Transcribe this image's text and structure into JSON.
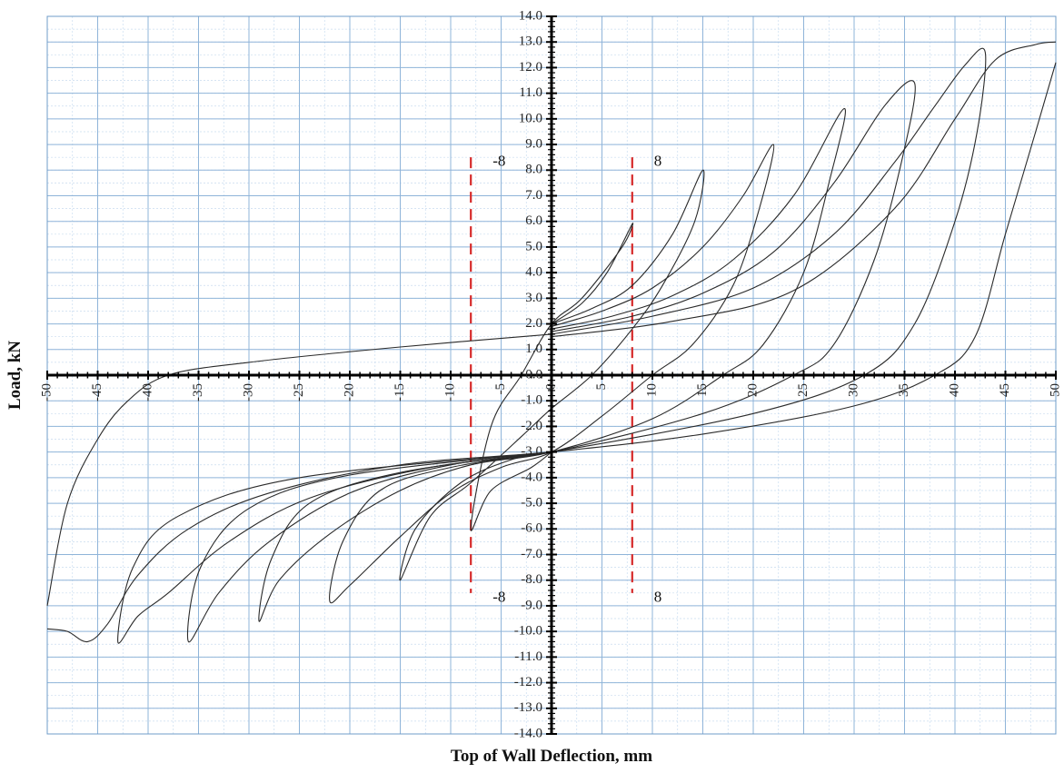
{
  "chart_data": {
    "type": "line",
    "title": "",
    "xlabel": "Top of Wall Deflection, mm",
    "ylabel": "Load, kN",
    "xlim": [
      -50,
      50
    ],
    "ylim": [
      -14,
      14
    ],
    "x_ticks": [
      -50,
      -45,
      -40,
      -35,
      -30,
      -25,
      -20,
      -15,
      -10,
      -5,
      0,
      5,
      10,
      15,
      20,
      25,
      30,
      35,
      40,
      45,
      50
    ],
    "y_ticks": [
      14,
      13,
      12,
      11,
      10,
      9,
      8,
      7,
      6,
      5,
      4,
      3,
      2,
      1,
      0,
      -1,
      -2,
      -3,
      -4,
      -5,
      -6,
      -7,
      -8,
      -9,
      -10,
      -11,
      -12,
      -13,
      -14
    ],
    "y_tick_labels": [
      "14.0",
      "13.0",
      "12.0",
      "11.0",
      "10.0",
      "9.0",
      "8.0",
      "7.0",
      "6.0",
      "5.0",
      "4.0",
      "3.0",
      "2.0",
      "1.0",
      "0.0",
      "-1.0",
      "-2.0",
      "-3.0",
      "-4.0",
      "-5.0",
      "-6.0",
      "-7.0",
      "-8.0",
      "-9.0",
      "-10.0",
      "-11.0",
      "-12.0",
      "-13.0",
      "-14.0"
    ],
    "grid": true,
    "minor_grid": true,
    "colors": {
      "curve": "#2a2a2a",
      "grid_major": "#8fb4d9",
      "grid_minor": "#c9dcef",
      "axis": "#000000",
      "marker": "#d62a2a"
    },
    "series": [
      {
        "values": [
          [
            0,
            2
          ],
          [
            3,
            2.8
          ],
          [
            5.5,
            4
          ],
          [
            8,
            5.9
          ],
          [
            7,
            5
          ],
          [
            3,
            3
          ],
          [
            0,
            2
          ],
          [
            -3,
            0
          ],
          [
            -6,
            -2
          ],
          [
            -8,
            -6
          ],
          [
            -6,
            -4.5
          ],
          [
            -2,
            -3.6
          ],
          [
            0,
            -3
          ]
        ]
      },
      {
        "values": [
          [
            0,
            2
          ],
          [
            4,
            2.6
          ],
          [
            8,
            3.5
          ],
          [
            12,
            5.5
          ],
          [
            15,
            8
          ],
          [
            14.2,
            6
          ],
          [
            11,
            3.5
          ],
          [
            8,
            1.8
          ],
          [
            4,
            0
          ],
          [
            0,
            -1.3
          ],
          [
            -3,
            -2.4
          ],
          [
            -8,
            -4.2
          ],
          [
            -12,
            -5.5
          ],
          [
            -15,
            -8
          ],
          [
            -13.5,
            -6
          ],
          [
            -9,
            -4.2
          ],
          [
            -4,
            -3.3
          ],
          [
            0,
            -3
          ]
        ]
      },
      {
        "values": [
          [
            0,
            1.9
          ],
          [
            5,
            2.5
          ],
          [
            10,
            3.4
          ],
          [
            15,
            5
          ],
          [
            19,
            7
          ],
          [
            22,
            9
          ],
          [
            20.6,
            6.5
          ],
          [
            18,
            3.5
          ],
          [
            14,
            1.2
          ],
          [
            10,
            0
          ],
          [
            5,
            -1.6
          ],
          [
            0,
            -3
          ],
          [
            -5,
            -3.6
          ],
          [
            -10,
            -4.6
          ],
          [
            -15,
            -6.3
          ],
          [
            -20,
            -8.2
          ],
          [
            -22,
            -8.8
          ],
          [
            -20.7,
            -6.5
          ],
          [
            -17,
            -4.5
          ],
          [
            -10,
            -3.6
          ],
          [
            0,
            -3
          ]
        ]
      },
      {
        "values": [
          [
            0,
            1.8
          ],
          [
            6,
            2.3
          ],
          [
            12,
            3.1
          ],
          [
            18,
            4.5
          ],
          [
            24,
            7
          ],
          [
            29,
            10.4
          ],
          [
            27.5,
            7.5
          ],
          [
            25,
            4
          ],
          [
            21,
            1.2
          ],
          [
            17,
            0
          ],
          [
            10,
            -1.7
          ],
          [
            0,
            -3
          ],
          [
            -8,
            -3.5
          ],
          [
            -15,
            -4.5
          ],
          [
            -22,
            -6.2
          ],
          [
            -27,
            -8
          ],
          [
            -29,
            -9.6
          ],
          [
            -27.8,
            -7.2
          ],
          [
            -24,
            -5
          ],
          [
            -15,
            -3.8
          ],
          [
            0,
            -3
          ]
        ]
      },
      {
        "values": [
          [
            0,
            1.7
          ],
          [
            8,
            2.3
          ],
          [
            15,
            3.2
          ],
          [
            22,
            4.8
          ],
          [
            28,
            7.5
          ],
          [
            33,
            10.5
          ],
          [
            36,
            11.4
          ],
          [
            34.8,
            8.5
          ],
          [
            32,
            4.5
          ],
          [
            28,
            1.2
          ],
          [
            24,
            0
          ],
          [
            15,
            -1.5
          ],
          [
            0,
            -3
          ],
          [
            -10,
            -3.5
          ],
          [
            -20,
            -4.6
          ],
          [
            -28,
            -6.5
          ],
          [
            -33,
            -8.5
          ],
          [
            -36,
            -10.4
          ],
          [
            -34.8,
            -7.5
          ],
          [
            -30,
            -5.2
          ],
          [
            -20,
            -3.9
          ],
          [
            0,
            -3
          ]
        ]
      },
      {
        "values": [
          [
            0,
            1.6
          ],
          [
            10,
            2.3
          ],
          [
            20,
            3.4
          ],
          [
            28,
            5.5
          ],
          [
            34,
            8.3
          ],
          [
            38,
            10.5
          ],
          [
            41,
            12.1
          ],
          [
            43,
            12.6
          ],
          [
            42.2,
            9.5
          ],
          [
            40,
            6
          ],
          [
            36,
            2
          ],
          [
            31,
            0
          ],
          [
            20,
            -1.5
          ],
          [
            0,
            -3
          ],
          [
            -12,
            -3.6
          ],
          [
            -24,
            -4.8
          ],
          [
            -32,
            -6.5
          ],
          [
            -38,
            -8.5
          ],
          [
            -41,
            -9.4
          ],
          [
            -43,
            -10.4
          ],
          [
            -41.5,
            -7.5
          ],
          [
            -37,
            -5.5
          ],
          [
            -25,
            -4
          ],
          [
            0,
            -3
          ]
        ]
      },
      {
        "values": [
          [
            0,
            1.5
          ],
          [
            12,
            2.1
          ],
          [
            24,
            3.3
          ],
          [
            34,
            6.5
          ],
          [
            40,
            10
          ],
          [
            44,
            12.3
          ],
          [
            48,
            12.9
          ],
          [
            50,
            13
          ]
        ]
      },
      {
        "values": [
          [
            50,
            12.2
          ],
          [
            48,
            9.5
          ],
          [
            45,
            5.5
          ],
          [
            42,
            1.5
          ],
          [
            38,
            0
          ],
          [
            30,
            -1.2
          ],
          [
            15,
            -2.3
          ],
          [
            0,
            -3
          ],
          [
            -15,
            -3.5
          ],
          [
            -28,
            -4.6
          ],
          [
            -36,
            -6
          ],
          [
            -41,
            -7.8
          ],
          [
            -44,
            -9.7
          ],
          [
            -46,
            -10.4
          ],
          [
            -48,
            -10
          ],
          [
            -50,
            -9.9
          ]
        ]
      },
      {
        "values": [
          [
            -50,
            -9
          ],
          [
            -48,
            -5
          ],
          [
            -45,
            -2.5
          ],
          [
            -42,
            -1
          ],
          [
            -38,
            0
          ],
          [
            -30,
            0.5
          ],
          [
            -15,
            1.1
          ],
          [
            0,
            1.6
          ]
        ]
      }
    ],
    "annotations": [
      {
        "text": "-8",
        "x": -8,
        "y": 8.3
      },
      {
        "text": "8",
        "x": 8,
        "y": 8.3
      },
      {
        "text": "-8",
        "x": -8,
        "y": -8.7
      },
      {
        "text": "8",
        "x": 8,
        "y": -8.7
      }
    ],
    "reference_lines": [
      {
        "x": -8,
        "y_from": -8.5,
        "y_to": 8.5,
        "style": "dashed",
        "color": "#d62a2a"
      },
      {
        "x": 8,
        "y_from": -8.5,
        "y_to": 8.5,
        "style": "dashed",
        "color": "#d62a2a"
      }
    ]
  }
}
